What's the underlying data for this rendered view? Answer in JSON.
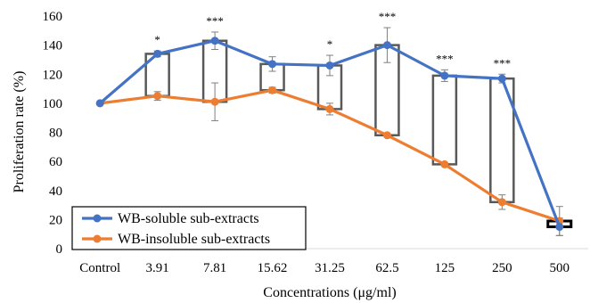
{
  "chart_data": {
    "type": "line",
    "title": "",
    "xlabel": "Concentrations (μg/ml)",
    "ylabel": "Proliferation rate (%)",
    "ylim": [
      0,
      160
    ],
    "yticks": [
      0,
      20,
      40,
      60,
      80,
      100,
      120,
      140,
      160
    ],
    "grid": false,
    "legend_position": "bottom-left",
    "categories": [
      "Control",
      "3.91",
      "7.81",
      "15.62",
      "31.25",
      "62.5",
      "125",
      "250",
      "500"
    ],
    "series": [
      {
        "name": "WB-soluble sub-extracts",
        "color": "#4472C4",
        "values": [
          100,
          134,
          143,
          127,
          126,
          140,
          119,
          117,
          15
        ],
        "errors": [
          0,
          2,
          6,
          5,
          7,
          12,
          4,
          3,
          6
        ]
      },
      {
        "name": "WB-insoluble sub-extracts",
        "color": "#ED7D31",
        "values": [
          100,
          105,
          101,
          109,
          96,
          78,
          58,
          32,
          19
        ],
        "errors": [
          0,
          3,
          13,
          2,
          4,
          1,
          1,
          5,
          10
        ]
      }
    ],
    "significance": [
      "",
      "*",
      "***",
      "",
      "*",
      "***",
      "***",
      "***",
      ""
    ]
  }
}
